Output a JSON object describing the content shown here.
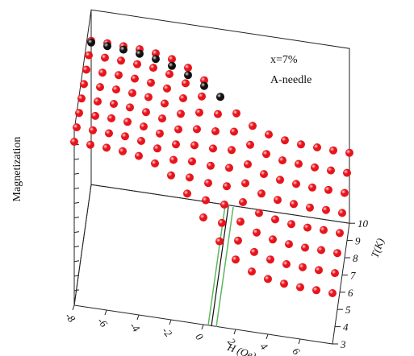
{
  "chart_data": {
    "type": "scatter3d",
    "annotations": [
      "x=7%",
      "A-needle"
    ],
    "x_label": "H (Oe)",
    "y_label": "T(K)",
    "z_label": "Magnetization",
    "xlim": [
      -8,
      8
    ],
    "xticks": [
      -8,
      -6,
      -4,
      -2,
      0,
      2,
      4,
      6
    ],
    "ylim": [
      3,
      10
    ],
    "yticks": [
      3,
      4,
      5,
      6,
      7,
      8,
      9,
      10
    ],
    "zlim": [
      -1.9,
      1.2
    ],
    "x": [
      -8,
      -7,
      -6,
      -5,
      -4,
      -3,
      -2,
      -1,
      0,
      1,
      2,
      3,
      4,
      5,
      6,
      7,
      8
    ],
    "series": [
      {
        "T": 10,
        "color": "#e8141c",
        "values": [
          0.65,
          0.65,
          0.64,
          0.63,
          0.6,
          0.54,
          0.43,
          0.25,
          0,
          -0.25,
          -0.43,
          -0.54,
          -0.6,
          -0.63,
          -0.64,
          -0.65,
          -0.65
        ]
      },
      {
        "T": 10,
        "color": "#111111",
        "values": [
          0.62,
          0.6,
          0.58,
          0.55,
          0.5,
          0.42,
          0.3,
          0.15,
          0,
          null,
          null,
          null,
          null,
          null,
          null,
          null,
          null
        ]
      },
      {
        "T": 9,
        "color": "#e8141c",
        "values": [
          0.7,
          0.7,
          0.69,
          0.67,
          0.65,
          0.58,
          0.46,
          0.27,
          0,
          -0.27,
          -0.46,
          -0.58,
          -0.65,
          -0.67,
          -0.69,
          -0.7,
          -0.7
        ]
      },
      {
        "T": 8,
        "color": "#e8141c",
        "values": [
          0.75,
          0.74,
          0.74,
          0.72,
          0.69,
          0.63,
          0.5,
          0.29,
          0,
          -0.29,
          -0.5,
          -0.63,
          -0.69,
          -0.72,
          -0.74,
          -0.74,
          -0.75
        ]
      },
      {
        "T": 7,
        "color": "#e8141c",
        "values": [
          0.8,
          0.79,
          0.79,
          0.77,
          0.74,
          0.67,
          0.53,
          0.3,
          0,
          -0.3,
          -0.53,
          -0.67,
          -0.74,
          -0.77,
          -0.79,
          -0.79,
          -0.8
        ]
      },
      {
        "T": 6,
        "color": "#e8141c",
        "values": [
          0.85,
          0.84,
          0.84,
          0.82,
          0.78,
          0.71,
          0.56,
          0.32,
          0,
          -0.32,
          -0.56,
          -0.71,
          -0.78,
          -0.82,
          -0.84,
          -0.84,
          -0.85
        ]
      },
      {
        "T": 5,
        "color": "#e8141c",
        "values": [
          0.9,
          0.89,
          0.89,
          0.87,
          0.83,
          0.75,
          0.6,
          0.34,
          0,
          -0.34,
          -0.6,
          -0.75,
          -0.83,
          -0.87,
          -0.89,
          -0.89,
          -0.9
        ]
      },
      {
        "T": 4,
        "color": "#e8141c",
        "values": [
          0.95,
          0.94,
          0.93,
          0.92,
          0.88,
          0.79,
          0.63,
          0.36,
          0,
          -0.36,
          -0.63,
          -0.79,
          -0.88,
          -0.92,
          -0.93,
          -0.94,
          -0.95
        ]
      },
      {
        "T": 3,
        "color": "#e8141c",
        "values": [
          1.0,
          0.99,
          0.98,
          0.96,
          0.92,
          0.83,
          0.66,
          0.38,
          0,
          -0.38,
          -0.66,
          -0.83,
          -0.92,
          -0.96,
          -0.98,
          -0.99,
          -1.0
        ]
      }
    ]
  }
}
